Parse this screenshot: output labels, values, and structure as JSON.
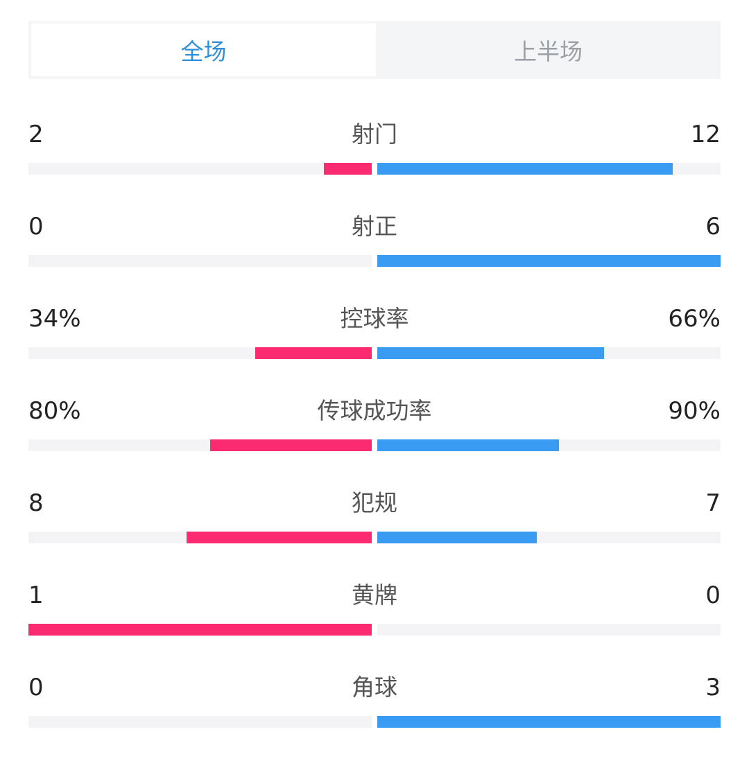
{
  "tabs": [
    {
      "label": "全场",
      "active": true
    },
    {
      "label": "上半场",
      "active": false
    }
  ],
  "colors": {
    "home": "#fb2a71",
    "away": "#399cf2",
    "track": "#f4f4f6",
    "active_tab": "#2f8fd8"
  },
  "stats": [
    {
      "label": "射门",
      "left": "2",
      "right": "12",
      "left_fill": 0.14,
      "right_fill": 0.86
    },
    {
      "label": "射正",
      "left": "0",
      "right": "6",
      "left_fill": 0.0,
      "right_fill": 1.0
    },
    {
      "label": "控球率",
      "left": "34%",
      "right": "66%",
      "left_fill": 0.34,
      "right_fill": 0.66
    },
    {
      "label": "传球成功率",
      "left": "80%",
      "right": "90%",
      "left_fill": 0.47,
      "right_fill": 0.53
    },
    {
      "label": "犯规",
      "left": "8",
      "right": "7",
      "left_fill": 0.54,
      "right_fill": 0.465
    },
    {
      "label": "黄牌",
      "left": "1",
      "right": "0",
      "left_fill": 1.0,
      "right_fill": 0.0
    },
    {
      "label": "角球",
      "left": "0",
      "right": "3",
      "left_fill": 0.0,
      "right_fill": 1.0
    }
  ]
}
